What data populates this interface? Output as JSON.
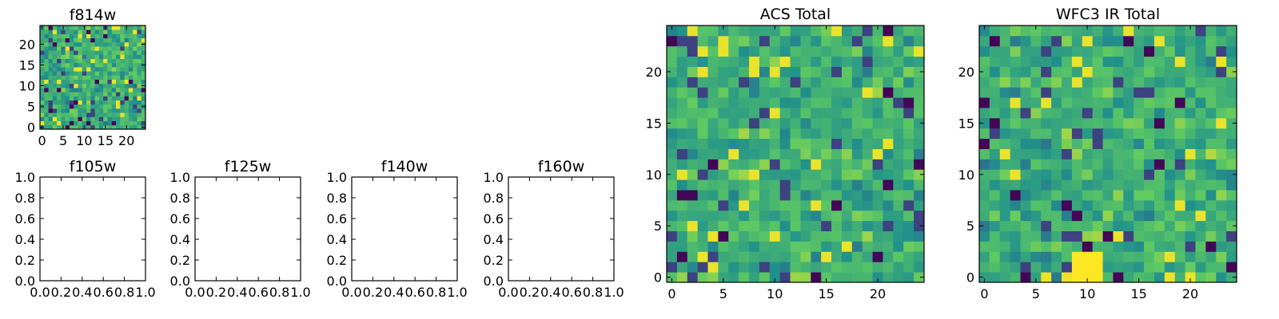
{
  "figure": {
    "colormap": [
      "#440154",
      "#3b528b",
      "#21918c",
      "#5ec962",
      "#fde725"
    ],
    "grid_size": 25
  },
  "chart_data": [
    {
      "type": "heatmap",
      "title": "f814w",
      "xticks": [
        0,
        5,
        10,
        15,
        20
      ],
      "yticks": [
        0,
        5,
        10,
        15,
        20
      ],
      "xlim": [
        -0.5,
        24.5
      ],
      "ylim": [
        -0.5,
        24.5
      ],
      "seed": 814,
      "bright_blob": false
    },
    {
      "type": "empty",
      "title": "f105w",
      "xticks": [
        "0.0",
        "0.2",
        "0.4",
        "0.6",
        "0.8",
        "1.0"
      ],
      "yticks": [
        "0.0",
        "0.2",
        "0.4",
        "0.6",
        "0.8",
        "1.0"
      ],
      "xlim": [
        0,
        1
      ],
      "ylim": [
        0,
        1
      ]
    },
    {
      "type": "empty",
      "title": "f125w",
      "xticks": [
        "0.0",
        "0.2",
        "0.4",
        "0.6",
        "0.8",
        "1.0"
      ],
      "yticks": [
        "0.0",
        "0.2",
        "0.4",
        "0.6",
        "0.8",
        "1.0"
      ],
      "xlim": [
        0,
        1
      ],
      "ylim": [
        0,
        1
      ]
    },
    {
      "type": "empty",
      "title": "f140w",
      "xticks": [
        "0.0",
        "0.2",
        "0.4",
        "0.6",
        "0.8",
        "1.0"
      ],
      "yticks": [
        "0.0",
        "0.2",
        "0.4",
        "0.6",
        "0.8",
        "1.0"
      ],
      "xlim": [
        0,
        1
      ],
      "ylim": [
        0,
        1
      ]
    },
    {
      "type": "empty",
      "title": "f160w",
      "xticks": [
        "0.0",
        "0.2",
        "0.4",
        "0.6",
        "0.8",
        "1.0"
      ],
      "yticks": [
        "0.0",
        "0.2",
        "0.4",
        "0.6",
        "0.8",
        "1.0"
      ],
      "xlim": [
        0,
        1
      ],
      "ylim": [
        0,
        1
      ]
    },
    {
      "type": "heatmap",
      "title": "ACS Total",
      "xticks": [
        0,
        5,
        10,
        15,
        20
      ],
      "yticks": [
        0,
        5,
        10,
        15,
        20
      ],
      "xlim": [
        -0.5,
        24.5
      ],
      "ylim": [
        -0.5,
        24.5
      ],
      "seed": 2718,
      "bright_blob": false
    },
    {
      "type": "heatmap",
      "title": "WFC3 IR Total",
      "xticks": [
        0,
        5,
        10,
        15,
        20
      ],
      "yticks": [
        0,
        5,
        10,
        15,
        20
      ],
      "xlim": [
        -0.5,
        24.5
      ],
      "ylim": [
        -0.5,
        24.5
      ],
      "seed": 3141,
      "bright_blob": true
    }
  ]
}
